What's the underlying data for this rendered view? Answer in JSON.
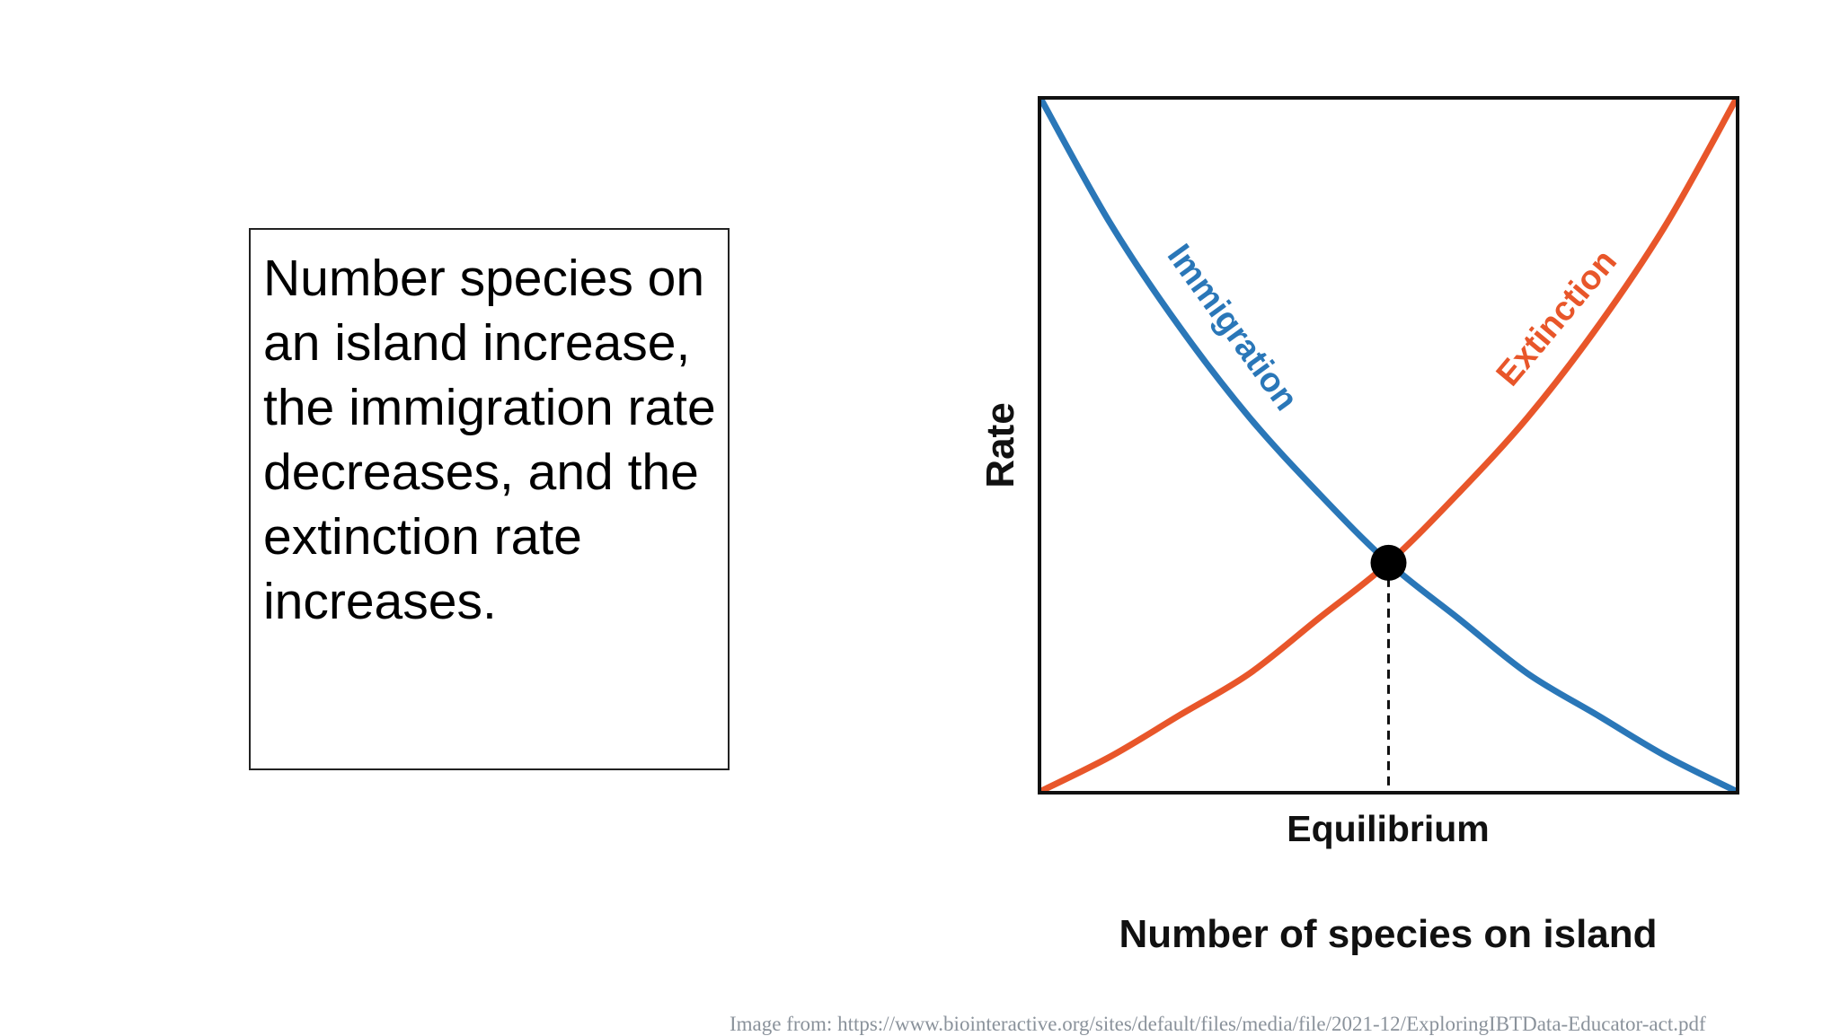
{
  "textbox": {
    "text": "Number species on an island increase, the immigration rate decreases, and the extinction rate increases."
  },
  "chart_data": {
    "type": "line",
    "title": "",
    "xlabel": "Number of species on island",
    "ylabel": "Rate",
    "xlim": [
      0,
      1
    ],
    "ylim": [
      0,
      1
    ],
    "x_tick_labels": [],
    "y_tick_labels": [],
    "grid": false,
    "legend": "none (curves labeled inline)",
    "series": [
      {
        "name": "Immigration",
        "color": "#2a77b8",
        "x": [
          0,
          0.1,
          0.2,
          0.3,
          0.4,
          0.5,
          0.6,
          0.7,
          0.8,
          0.9,
          1.0
        ],
        "y": [
          1.0,
          0.82,
          0.67,
          0.54,
          0.43,
          0.33,
          0.25,
          0.17,
          0.11,
          0.05,
          0.0
        ]
      },
      {
        "name": "Extinction",
        "color": "#e8562a",
        "x": [
          0,
          0.1,
          0.2,
          0.3,
          0.4,
          0.5,
          0.6,
          0.7,
          0.8,
          0.9,
          1.0
        ],
        "y": [
          0.0,
          0.05,
          0.11,
          0.17,
          0.25,
          0.33,
          0.43,
          0.54,
          0.67,
          0.82,
          1.0
        ]
      }
    ],
    "annotations": [
      {
        "type": "point",
        "x": 0.5,
        "y": 0.33,
        "color": "#000000"
      },
      {
        "type": "dashed-vline",
        "x": 0.5,
        "from_y": 0,
        "to_y": 0.33,
        "label": "Equilibrium"
      }
    ]
  },
  "credit": {
    "text": "Image from: https://www.biointeractive.org/sites/default/files/media/file/2021-12/ExploringIBTData-Educator-act.pdf"
  }
}
